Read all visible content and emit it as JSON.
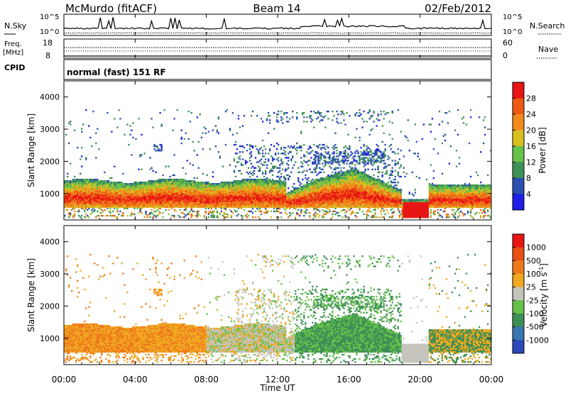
{
  "header": {
    "station": "McMurdo (fitACF)",
    "beam": "Beam 14",
    "date": "02/Feb/2012"
  },
  "top_panels": {
    "nsky": {
      "left_label": "N.Sky",
      "left_ticks": [
        "10^5",
        "10^0"
      ],
      "right_ticks": [
        "10^5",
        "10^0"
      ],
      "right_label": "N.Search"
    },
    "freq": {
      "left_label_1": "Freq.",
      "left_label_2": "[MHz]",
      "left_ticks": [
        "18",
        "8"
      ],
      "right_ticks": [
        "60",
        "0"
      ],
      "right_label": "Nave"
    },
    "cpid": {
      "label": "CPID",
      "text": "normal (fast) 151 RF"
    }
  },
  "chart_data": [
    {
      "type": "heatmap",
      "panel": "power",
      "ylabel": "Slant Range [km]",
      "yticks": [
        1000,
        2000,
        3000,
        4000
      ],
      "ylim": [
        180,
        4500
      ],
      "xlim_hours": [
        0,
        24
      ],
      "colorbar": {
        "label": "Power [dB]",
        "levels": [
          0,
          4,
          8,
          12,
          16,
          20,
          24,
          28,
          32
        ],
        "tick_labels": [
          "4",
          "8",
          "12",
          "16",
          "20",
          "24",
          "28"
        ],
        "colors": [
          "#1e1ee6",
          "#2a4fb0",
          "#3d8f55",
          "#67c24a",
          "#d8c020",
          "#f08a1c",
          "#ee5a14",
          "#e81414"
        ]
      }
    },
    {
      "type": "heatmap",
      "panel": "velocity",
      "ylabel": "Slant Range [km]",
      "yticks": [
        1000,
        2000,
        3000,
        4000
      ],
      "ylim": [
        180,
        4500
      ],
      "xlim_hours": [
        0,
        24
      ],
      "colorbar": {
        "label": "Velocity [m s",
        "label_sup": "-1",
        "label_end": "]",
        "tick_labels": [
          "1000",
          "500",
          "100",
          "25",
          "-25",
          "-100",
          "-500",
          "-1000"
        ],
        "colors": [
          "#2a48b8",
          "#3a76b0",
          "#3d8f55",
          "#67c24a",
          "#c4c4bc",
          "#f0a820",
          "#ee7a1c",
          "#e85014",
          "#e81414"
        ]
      }
    }
  ],
  "x_axis": {
    "ticks": [
      "00:00",
      "04:00",
      "08:00",
      "12:00",
      "16:00",
      "20:00",
      "00:00"
    ],
    "label": "Time UT"
  }
}
